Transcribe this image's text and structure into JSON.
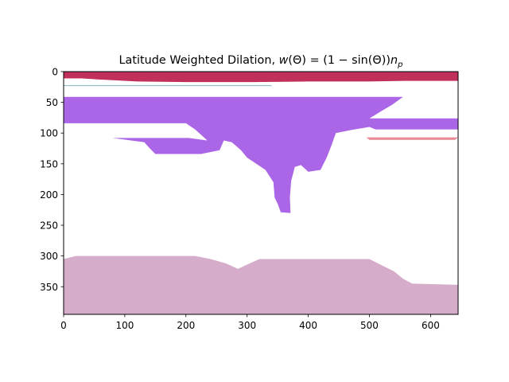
{
  "chart_data": {
    "type": "heatmap",
    "title": "Latitude Weighted Dilation, ",
    "title_math": {
      "w": "w",
      "open": "(",
      "theta": "Θ",
      "close": ")",
      "equals": " = (1 − sin(",
      "close2": "))",
      "n": "n",
      "p": "p"
    },
    "xlabel": "",
    "ylabel": "",
    "xlim": [
      0,
      645
    ],
    "ylim": [
      395,
      0
    ],
    "y_inverted": true,
    "x_ticks": [
      0,
      100,
      200,
      300,
      400,
      500,
      600
    ],
    "y_ticks": [
      0,
      50,
      100,
      150,
      200,
      250,
      300,
      350
    ],
    "grid": false,
    "legend": "none",
    "regions": [
      {
        "color": "#c0305b",
        "polygon": [
          [
            0,
            0
          ],
          [
            645,
            0
          ],
          [
            645,
            15
          ],
          [
            560,
            15
          ],
          [
            500,
            16
          ],
          [
            400,
            16
          ],
          [
            310,
            17
          ],
          [
            200,
            17
          ],
          [
            120,
            16
          ],
          [
            60,
            13
          ],
          [
            30,
            11
          ],
          [
            0,
            11
          ]
        ]
      },
      {
        "color": "#8fc0c8",
        "polygon": [
          [
            0,
            22
          ],
          [
            340,
            22
          ],
          [
            340,
            23.5
          ],
          [
            0,
            23.5
          ]
        ]
      },
      {
        "color": "#ab66e8",
        "polygon": [
          [
            0,
            41
          ],
          [
            555,
            41
          ],
          [
            537,
            54
          ],
          [
            520,
            64
          ],
          [
            510,
            70
          ],
          [
            500,
            76
          ],
          [
            645,
            76
          ],
          [
            645,
            94
          ],
          [
            510,
            94
          ],
          [
            500,
            90
          ],
          [
            470,
            95
          ],
          [
            445,
            100
          ],
          [
            438,
            120
          ],
          [
            430,
            140
          ],
          [
            420,
            160
          ],
          [
            400,
            163
          ],
          [
            388,
            152
          ],
          [
            378,
            155
          ],
          [
            372,
            178
          ],
          [
            370,
            205
          ],
          [
            371,
            230
          ],
          [
            355,
            229
          ],
          [
            350,
            215
          ],
          [
            345,
            205
          ],
          [
            343,
            180
          ],
          [
            330,
            160
          ],
          [
            315,
            150
          ],
          [
            300,
            140
          ],
          [
            290,
            128
          ],
          [
            275,
            115
          ],
          [
            262,
            112
          ],
          [
            255,
            128
          ],
          [
            225,
            134
          ],
          [
            150,
            134
          ],
          [
            140,
            124
          ],
          [
            132,
            115
          ],
          [
            80,
            108
          ],
          [
            205,
            108
          ],
          [
            235,
            112
          ],
          [
            215,
            94
          ],
          [
            200,
            84
          ],
          [
            140,
            84
          ],
          [
            0,
            84
          ]
        ]
      },
      {
        "color": "#e68a94",
        "polygon": [
          [
            495,
            107
          ],
          [
            645,
            107
          ],
          [
            640,
            111
          ],
          [
            500,
            111
          ]
        ]
      },
      {
        "color": "#d5acca",
        "polygon": [
          [
            0,
            305
          ],
          [
            20,
            300
          ],
          [
            215,
            300
          ],
          [
            240,
            305
          ],
          [
            265,
            312
          ],
          [
            285,
            321
          ],
          [
            300,
            314
          ],
          [
            320,
            305
          ],
          [
            500,
            305
          ],
          [
            520,
            315
          ],
          [
            540,
            325
          ],
          [
            555,
            337
          ],
          [
            570,
            345
          ],
          [
            645,
            347
          ],
          [
            645,
            395
          ],
          [
            0,
            395
          ]
        ]
      }
    ]
  }
}
